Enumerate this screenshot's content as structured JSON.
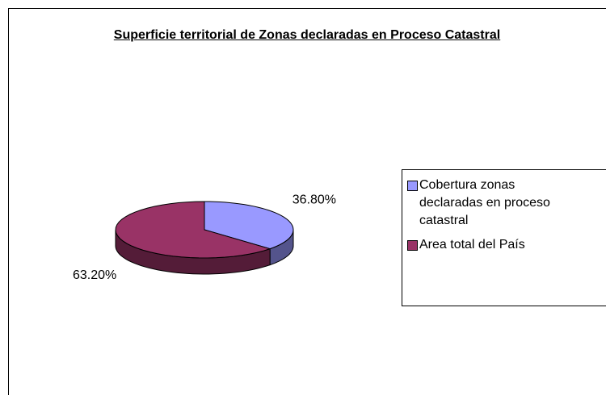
{
  "chart_data": {
    "type": "pie",
    "title": "Superficie territorial de Zonas declaradas en Proceso Catastral",
    "categories": [
      "Cobertura zonas declaradas en proceso catastral",
      "Area total del País"
    ],
    "values": [
      36.8,
      63.2
    ],
    "value_labels": [
      "36.80%",
      "63.20%"
    ],
    "colors": [
      "#9999ff",
      "#993366"
    ],
    "legend": "right"
  }
}
